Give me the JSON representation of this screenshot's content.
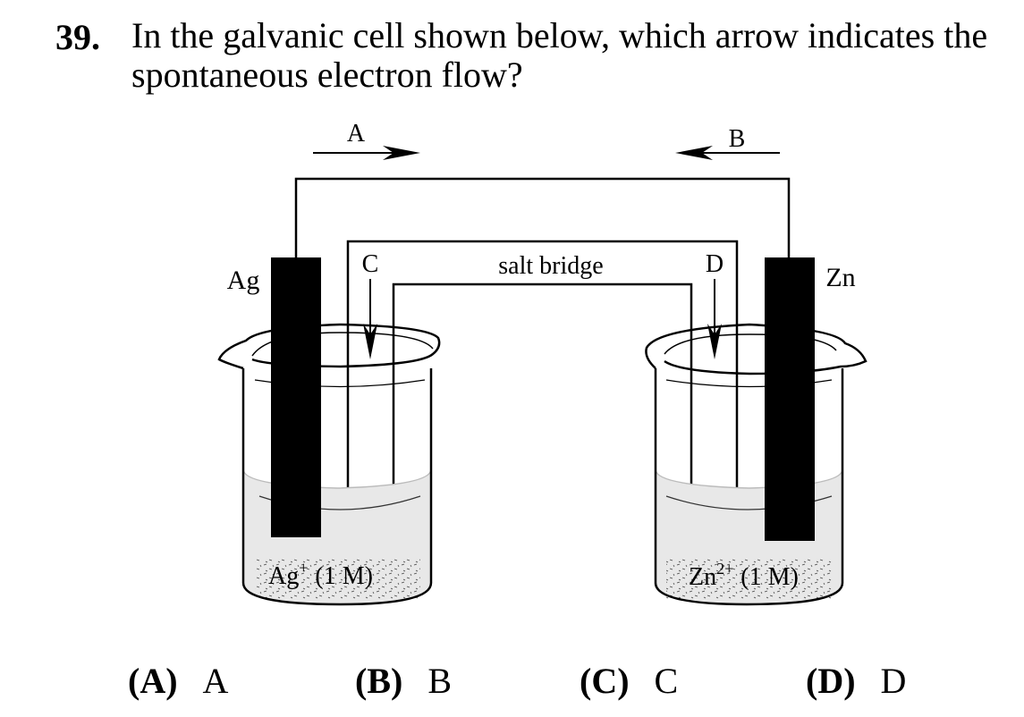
{
  "question": {
    "number": "39.",
    "text": "In the galvanic cell shown below, which arrow indicates the spontaneous electron flow?"
  },
  "diagram": {
    "labels": {
      "arrow_a": "A",
      "arrow_b": "B",
      "arrow_c": "C",
      "arrow_d": "D",
      "left_electrode": "Ag",
      "right_electrode": "Zn",
      "salt_bridge": "salt bridge",
      "left_solution_ion": "Ag",
      "left_solution_charge": "+",
      "left_solution_conc": "(1 M)",
      "right_solution_ion": "Zn",
      "right_solution_charge": "2+",
      "right_solution_conc": "(1 M)"
    }
  },
  "choices": [
    {
      "letter": "(A)",
      "text": "A"
    },
    {
      "letter": "(B)",
      "text": "B"
    },
    {
      "letter": "(C)",
      "text": "C"
    },
    {
      "letter": "(D)",
      "text": "D"
    }
  ]
}
